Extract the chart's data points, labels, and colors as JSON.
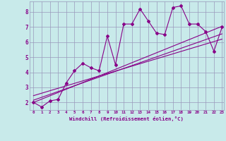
{
  "xlabel": "Windchill (Refroidissement éolien,°C)",
  "xlim": [
    -0.5,
    23.2
  ],
  "ylim": [
    1.5,
    8.7
  ],
  "bg_color": "#c8eaea",
  "grid_color": "#9999bb",
  "line_color": "#880088",
  "data_x": [
    0,
    1,
    2,
    3,
    4,
    5,
    6,
    7,
    8,
    9,
    10,
    11,
    12,
    13,
    14,
    15,
    16,
    17,
    18,
    19,
    20,
    21,
    22,
    23
  ],
  "data_y": [
    2.0,
    1.7,
    2.1,
    2.2,
    3.3,
    4.1,
    4.6,
    4.3,
    4.1,
    6.4,
    4.5,
    7.2,
    7.2,
    8.2,
    7.4,
    6.6,
    6.5,
    8.3,
    8.4,
    7.2,
    7.2,
    6.7,
    5.4,
    7.0
  ],
  "reg_lines": [
    {
      "x": [
        0,
        23
      ],
      "y": [
        2.0,
        7.05
      ]
    },
    {
      "x": [
        0,
        23
      ],
      "y": [
        2.15,
        6.55
      ]
    },
    {
      "x": [
        0,
        23
      ],
      "y": [
        2.45,
        6.2
      ]
    }
  ],
  "yticks": [
    2,
    3,
    4,
    5,
    6,
    7,
    8
  ],
  "xtick_labels": [
    "0",
    "1",
    "2",
    "3",
    "4",
    "5",
    "6",
    "7",
    "8",
    "9",
    "10",
    "11",
    "12",
    "13",
    "14",
    "15",
    "16",
    "17",
    "18",
    "19",
    "20",
    "21",
    "22",
    "23"
  ]
}
